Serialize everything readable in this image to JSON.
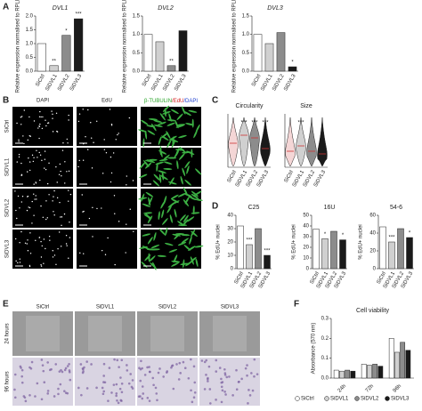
{
  "figure": {
    "letters": [
      "A",
      "B",
      "C",
      "D",
      "E",
      "F"
    ],
    "b_headers": [
      "DAPI",
      "EdU"
    ],
    "b_merge_header": [
      {
        "text": "β-TUBULIN",
        "color": "#2aa52a"
      },
      {
        "text": "/EdU",
        "color": "#d62020"
      },
      {
        "text": "/DAPI",
        "color": "#2040d0"
      }
    ],
    "b_rows": [
      "SiCtrl",
      "SiDVL1",
      "SiDVL2",
      "SiDVL3"
    ],
    "e_headers": [
      "SiCtrl",
      "SiDVL1",
      "SiDVL2",
      "SiDVL3"
    ],
    "e_rows": [
      "24 hours",
      "96 hours"
    ]
  },
  "chart_data": [
    {
      "type": "bar",
      "title": "DVL1",
      "ylabel": "Relative expression normalised to RPLP0",
      "categories": [
        "SiCtrl",
        "SiDVL1",
        "SiDVL2",
        "SiDVL3"
      ],
      "values": [
        1.0,
        0.2,
        1.3,
        1.9
      ],
      "colors": [
        "#ffffff",
        "#d0d0d0",
        "#8c8c8c",
        "#1a1a1a"
      ],
      "annotations": [
        null,
        "**",
        "*",
        "***"
      ],
      "ylim": [
        0,
        2
      ],
      "yticks": [
        {
          "value": 0,
          "label": "0.0"
        },
        {
          "value": 0.5,
          "label": "0.5"
        },
        {
          "value": 1,
          "label": "1.0"
        },
        {
          "value": 1.5,
          "label": "1.5"
        },
        {
          "value": 2,
          "label": "2.0"
        }
      ]
    },
    {
      "type": "bar",
      "title": "DVL2",
      "ylabel": "Relative expression normalised to RPLP0",
      "categories": [
        "SiCtrl",
        "SiDVL1",
        "SiDVL2",
        "SiDVL3"
      ],
      "values": [
        1.0,
        0.8,
        0.15,
        1.1
      ],
      "colors": [
        "#ffffff",
        "#d0d0d0",
        "#8c8c8c",
        "#1a1a1a"
      ],
      "annotations": [
        null,
        null,
        "**",
        null
      ],
      "ylim": [
        0,
        1.5
      ],
      "yticks": [
        {
          "value": 0,
          "label": "0.0"
        },
        {
          "value": 0.5,
          "label": "0.5"
        },
        {
          "value": 1,
          "label": "1.0"
        },
        {
          "value": 1.5,
          "label": "1.5"
        }
      ]
    },
    {
      "type": "bar",
      "title": "DVL3",
      "ylabel": "Relative expression normalised to RPLP0",
      "categories": [
        "SiCtrl",
        "SiDVL1",
        "SiDVL2",
        "SiDVL3"
      ],
      "values": [
        1.0,
        0.75,
        1.05,
        0.12
      ],
      "colors": [
        "#ffffff",
        "#d0d0d0",
        "#8c8c8c",
        "#1a1a1a"
      ],
      "annotations": [
        null,
        null,
        null,
        "*"
      ],
      "ylim": [
        0,
        1.5
      ],
      "yticks": [
        {
          "value": 0,
          "label": "0.0"
        },
        {
          "value": 0.5,
          "label": "0.5"
        },
        {
          "value": 1,
          "label": "1.0"
        },
        {
          "value": 1.5,
          "label": "1.5"
        }
      ]
    },
    {
      "type": "violin",
      "title": "Circularity",
      "categories": [
        "SiCtrl",
        "SiDVL1",
        "SiDVL2",
        "SiDVL3"
      ],
      "values": [
        0.45,
        0.6,
        0.55,
        0.35
      ],
      "colors": [
        "#f4d6d6",
        "#d0d0d0",
        "#8c8c8c",
        "#1a1a1a"
      ],
      "annotations": [
        null,
        "***",
        "***",
        "***"
      ],
      "ylim": [
        0,
        1
      ]
    },
    {
      "type": "violin",
      "title": "Size",
      "categories": [
        "SiCtrl",
        "SiDVL1",
        "SiDVL2",
        "SiDVL3"
      ],
      "values": [
        0.3,
        0.4,
        0.3,
        0.25
      ],
      "colors": [
        "#f4d6d6",
        "#d0d0d0",
        "#8c8c8c",
        "#1a1a1a"
      ],
      "annotations": [
        null,
        "***",
        null,
        null
      ],
      "ylim": [
        0,
        1
      ]
    },
    {
      "type": "bar",
      "title": "C25",
      "ylabel": "% EdU+ nuclei",
      "categories": [
        "SiCtrl",
        "SiDVL1",
        "SiDVL2",
        "SiDVL3"
      ],
      "values": [
        32,
        18,
        30,
        10
      ],
      "colors": [
        "#ffffff",
        "#d0d0d0",
        "#8c8c8c",
        "#1a1a1a"
      ],
      "annotations": [
        null,
        "***",
        null,
        "***"
      ],
      "ylim": [
        0,
        40
      ],
      "yticks": [
        0,
        10,
        20,
        30,
        40
      ]
    },
    {
      "type": "bar",
      "title": "16U",
      "ylabel": "% EdU+ nuclei",
      "categories": [
        "SiCtrl",
        "SiDVL1",
        "SiDVL2",
        "SiDVL3"
      ],
      "values": [
        37,
        28,
        35,
        27
      ],
      "colors": [
        "#ffffff",
        "#d0d0d0",
        "#8c8c8c",
        "#1a1a1a"
      ],
      "annotations": [
        null,
        "*",
        null,
        "*"
      ],
      "ylim": [
        0,
        50
      ],
      "yticks": [
        0,
        10,
        20,
        30,
        40,
        50
      ]
    },
    {
      "type": "bar",
      "title": "54-6",
      "ylabel": "% EdU+ nuclei",
      "categories": [
        "SiCtrl",
        "SiDVL1",
        "SiDVL2",
        "SiDVL3"
      ],
      "values": [
        47,
        30,
        45,
        35
      ],
      "colors": [
        "#ffffff",
        "#d0d0d0",
        "#8c8c8c",
        "#1a1a1a"
      ],
      "annotations": [
        null,
        "***",
        null,
        "*"
      ],
      "ylim": [
        0,
        60
      ],
      "yticks": [
        0,
        20,
        40,
        60
      ]
    },
    {
      "type": "grouped_bar",
      "title": "Cell viability",
      "ylabel": "Absorbance (570 nm)",
      "categories": [
        "24h",
        "72h",
        "96h"
      ],
      "series": [
        {
          "name": "SiCtrl",
          "color": "#ffffff",
          "values": [
            0.04,
            0.07,
            0.2
          ]
        },
        {
          "name": "SiDVL1",
          "color": "#d0d0d0",
          "values": [
            0.035,
            0.065,
            0.13
          ]
        },
        {
          "name": "SiDVL2",
          "color": "#8c8c8c",
          "values": [
            0.04,
            0.07,
            0.18
          ]
        },
        {
          "name": "SiDVL3",
          "color": "#1a1a1a",
          "values": [
            0.035,
            0.06,
            0.14
          ]
        }
      ],
      "ylim": [
        0,
        0.3
      ],
      "yticks": [
        {
          "value": 0,
          "label": "0.0"
        },
        {
          "value": 0.1,
          "label": "0.1"
        },
        {
          "value": 0.2,
          "label": "0.2"
        },
        {
          "value": 0.3,
          "label": "0.3"
        }
      ]
    }
  ]
}
